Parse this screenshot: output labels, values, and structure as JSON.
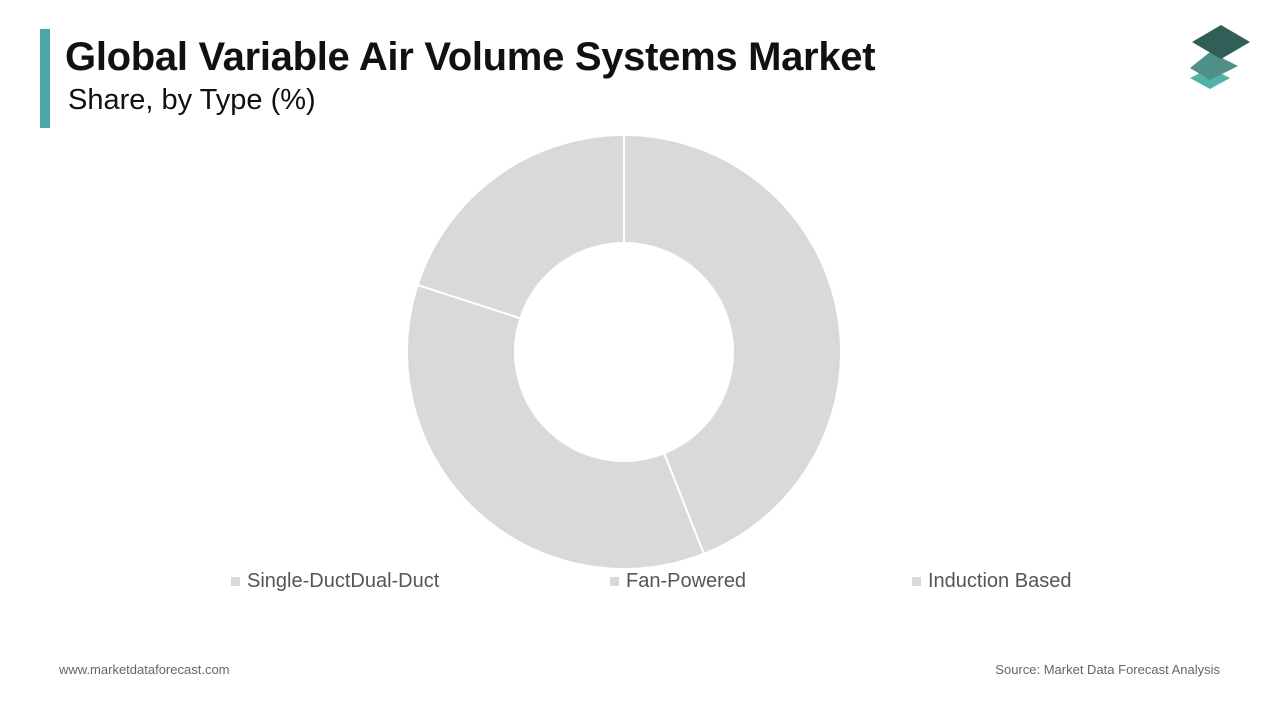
{
  "header": {
    "title": "Global Variable Air Volume Systems Market",
    "subtitle": "Share, by Type (%)"
  },
  "colors": {
    "accent": "#4aa9a6",
    "slice_fill": "#d9d9d9",
    "slice_separator": "#ffffff",
    "legend_swatch": "#d9d9d9",
    "logo_top": "#2f5f56",
    "logo_middle": "#4f8f86",
    "logo_bottom": "#4fb3aa"
  },
  "logo": {
    "icon": "stacked-layers-icon"
  },
  "chart_data": {
    "type": "pie",
    "donut": true,
    "categories": [
      "Single-DuctDual-Duct",
      "Fan-Powered",
      "Induction Based"
    ],
    "values": [
      44,
      36,
      20
    ],
    "unit": "%",
    "legend_position": "bottom",
    "title": "Global Variable Air Volume Systems Market",
    "subtitle": "Share, by Type (%)"
  },
  "footer": {
    "website": "www.marketdataforecast.com",
    "source": "Source: Market Data Forecast Analysis"
  }
}
